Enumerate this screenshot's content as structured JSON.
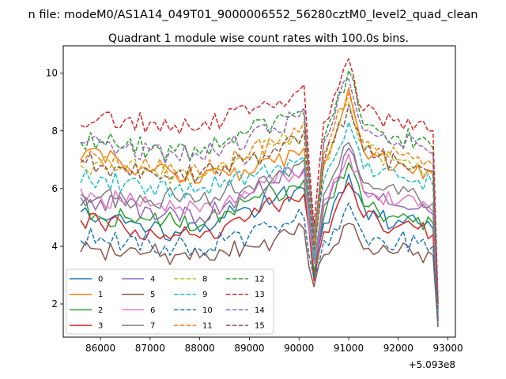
{
  "chart_data": {
    "type": "line",
    "suptitle": "n file: modeM0/AS1A14_049T01_9000006552_56280cztM0_level2_quad_clean",
    "title": "Quadrant 1 module wise count rates with 100.0s bins.",
    "xlabel": "",
    "ylabel": "",
    "x_offset_label": "+5.093e8",
    "xlim": [
      85250,
      93150
    ],
    "ylim": [
      0.85,
      10.95
    ],
    "x_ticks": [
      86000,
      87000,
      88000,
      89000,
      90000,
      91000,
      92000,
      93000
    ],
    "x_tick_labels": [
      "86000",
      "87000",
      "88000",
      "89000",
      "90000",
      "91000",
      "92000",
      "93000"
    ],
    "y_ticks": [
      2,
      4,
      6,
      8,
      10
    ],
    "y_tick_labels": [
      "2",
      "4",
      "6",
      "8",
      "10"
    ],
    "grid": false,
    "legend_position": "lower-left",
    "legend_columns": 4,
    "x_knots": [
      85600,
      86000,
      86500,
      87000,
      87500,
      88000,
      88500,
      89000,
      89500,
      89900,
      90100,
      90300,
      90500,
      90700,
      91000,
      91300,
      91600,
      92000,
      92400,
      92700,
      92800
    ],
    "series": [
      {
        "name": "0",
        "color": "#1f77b4",
        "dash": "solid",
        "values": [
          5.2,
          5.0,
          4.8,
          4.6,
          4.5,
          4.5,
          5.0,
          5.3,
          5.6,
          5.9,
          6.0,
          3.1,
          4.8,
          5.5,
          6.5,
          5.4,
          5.0,
          4.9,
          4.8,
          4.6,
          1.4
        ]
      },
      {
        "name": "1",
        "color": "#ff7f0e",
        "dash": "solid",
        "values": [
          7.0,
          7.3,
          6.6,
          6.6,
          6.5,
          6.2,
          6.6,
          6.5,
          6.9,
          7.3,
          7.4,
          3.6,
          6.8,
          7.7,
          9.5,
          7.3,
          7.1,
          6.9,
          6.8,
          6.5,
          1.5
        ]
      },
      {
        "name": "2",
        "color": "#2ca02c",
        "dash": "solid",
        "values": [
          5.4,
          5.0,
          5.0,
          4.9,
          4.8,
          4.7,
          5.2,
          5.6,
          5.9,
          6.1,
          6.3,
          3.0,
          5.0,
          5.7,
          6.9,
          5.4,
          5.2,
          5.0,
          5.0,
          4.8,
          1.5
        ]
      },
      {
        "name": "3",
        "color": "#d62728",
        "dash": "solid",
        "values": [
          4.9,
          4.8,
          4.6,
          4.6,
          4.4,
          4.3,
          4.7,
          5.0,
          5.4,
          5.6,
          5.8,
          2.8,
          4.5,
          5.1,
          6.2,
          5.0,
          4.9,
          4.7,
          4.6,
          4.4,
          1.4
        ]
      },
      {
        "name": "4",
        "color": "#9467bd",
        "dash": "solid",
        "values": [
          5.7,
          5.6,
          5.4,
          5.3,
          5.2,
          5.0,
          5.4,
          5.8,
          6.2,
          6.5,
          6.7,
          3.4,
          5.4,
          6.2,
          7.4,
          5.9,
          5.6,
          5.4,
          5.3,
          5.1,
          1.6
        ]
      },
      {
        "name": "5",
        "color": "#8c564b",
        "dash": "solid",
        "values": [
          3.8,
          3.9,
          3.8,
          3.8,
          3.7,
          3.6,
          3.8,
          4.0,
          4.2,
          4.4,
          4.6,
          2.6,
          3.7,
          4.0,
          4.8,
          3.9,
          3.8,
          3.8,
          3.8,
          3.7,
          1.2
        ]
      },
      {
        "name": "6",
        "color": "#e377c2",
        "dash": "solid",
        "values": [
          6.0,
          5.7,
          5.5,
          5.4,
          5.3,
          5.2,
          5.5,
          5.8,
          6.2,
          6.5,
          6.6,
          3.4,
          5.6,
          6.3,
          7.2,
          5.9,
          5.7,
          5.5,
          5.4,
          5.2,
          1.6
        ]
      },
      {
        "name": "7",
        "color": "#7f7f7f",
        "dash": "solid",
        "values": [
          5.8,
          5.7,
          5.6,
          5.6,
          5.7,
          5.6,
          5.9,
          6.1,
          6.4,
          6.8,
          7.0,
          3.5,
          5.8,
          6.5,
          7.6,
          6.2,
          6.0,
          5.8,
          5.7,
          5.5,
          1.7
        ]
      },
      {
        "name": "8",
        "color": "#bcbd22",
        "dash": "dashed",
        "values": [
          6.8,
          6.9,
          6.7,
          6.6,
          6.5,
          6.4,
          6.8,
          7.1,
          7.5,
          7.8,
          8.0,
          4.0,
          6.9,
          7.7,
          9.0,
          7.4,
          7.2,
          7.0,
          6.9,
          6.6,
          1.8
        ]
      },
      {
        "name": "9",
        "color": "#17becf",
        "dash": "dashed",
        "values": [
          6.2,
          6.4,
          6.2,
          6.1,
          6.0,
          6.0,
          6.3,
          6.5,
          6.7,
          6.9,
          7.1,
          3.6,
          6.3,
          7.0,
          8.3,
          6.7,
          6.5,
          6.4,
          6.3,
          6.1,
          1.7
        ]
      },
      {
        "name": "10",
        "color": "#1f77b4",
        "dash": "dashed",
        "values": [
          4.2,
          4.3,
          4.1,
          4.1,
          4.0,
          3.9,
          4.2,
          4.4,
          4.7,
          4.9,
          5.0,
          2.9,
          4.2,
          4.6,
          5.5,
          4.4,
          4.3,
          4.2,
          4.1,
          4.0,
          1.3
        ]
      },
      {
        "name": "11",
        "color": "#ff7f0e",
        "dash": "dashed",
        "values": [
          6.9,
          7.0,
          6.8,
          6.7,
          6.6,
          6.5,
          6.9,
          7.2,
          7.6,
          8.1,
          8.3,
          4.1,
          7.2,
          8.1,
          9.3,
          7.6,
          7.4,
          7.2,
          7.1,
          6.8,
          1.9
        ]
      },
      {
        "name": "12",
        "color": "#2ca02c",
        "dash": "dashed",
        "values": [
          7.6,
          7.7,
          7.5,
          7.4,
          7.3,
          7.2,
          7.6,
          8.0,
          8.3,
          8.6,
          8.6,
          4.4,
          7.7,
          8.6,
          10.1,
          8.2,
          8.0,
          7.8,
          7.7,
          7.4,
          2.0
        ]
      },
      {
        "name": "13",
        "color": "#d62728",
        "dash": "dashed",
        "values": [
          8.2,
          8.5,
          8.4,
          8.3,
          8.2,
          8.1,
          8.4,
          8.6,
          8.8,
          9.3,
          9.6,
          4.7,
          8.3,
          9.2,
          10.5,
          8.7,
          8.5,
          8.4,
          8.3,
          8.0,
          2.1
        ]
      },
      {
        "name": "14",
        "color": "#9467bd",
        "dash": "dashed",
        "values": [
          7.6,
          7.6,
          7.4,
          7.3,
          7.2,
          7.1,
          7.5,
          7.8,
          8.1,
          8.5,
          8.8,
          4.3,
          7.6,
          8.4,
          9.8,
          8.0,
          7.8,
          7.6,
          7.5,
          7.2,
          2.0
        ]
      },
      {
        "name": "15",
        "color": "#8c564b",
        "dash": "dashed",
        "values": [
          7.0,
          6.8,
          6.7,
          6.6,
          6.5,
          6.5,
          6.8,
          7.0,
          7.4,
          7.8,
          8.0,
          3.9,
          6.9,
          7.6,
          8.9,
          7.3,
          7.1,
          6.9,
          6.8,
          6.6,
          1.8
        ]
      }
    ]
  }
}
